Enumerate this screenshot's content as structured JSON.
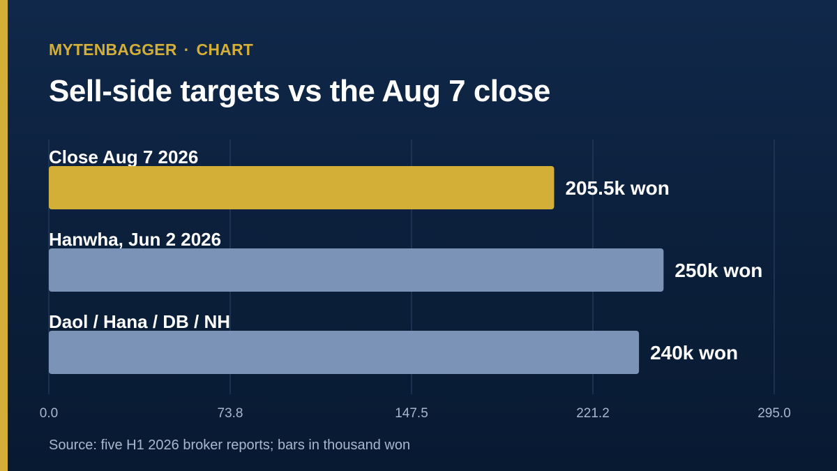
{
  "header": {
    "kicker_brand": "MYTENBAGGER",
    "kicker_separator": "·",
    "kicker_section": "CHART",
    "title": "Sell-side targets vs the Aug 7 close"
  },
  "footer": {
    "source": "Source: five H1 2026 broker reports; bars in thousand won"
  },
  "colors": {
    "accent": "#d4af37",
    "bar_default": "#7b93b7",
    "background": "#0b1f3a",
    "gridline": "#2c4566",
    "tick_label": "#a8b7cc"
  },
  "chart_data": {
    "type": "bar",
    "orientation": "horizontal",
    "title": "Sell-side targets vs the Aug 7 close",
    "xlabel": "",
    "ylabel": "",
    "xlim": [
      0,
      295
    ],
    "grid": true,
    "ticks": [
      "0.0",
      "73.8",
      "147.5",
      "221.2",
      "295.0"
    ],
    "tick_values": [
      0,
      73.75,
      147.5,
      221.25,
      295
    ],
    "bars": [
      {
        "category": "Close Aug 7 2026",
        "value": 205.5,
        "label": "205.5k won",
        "color": "#d4af37"
      },
      {
        "category": "Hanwha, Jun 2 2026",
        "value": 250,
        "label": "250k won",
        "color": "#7b93b7"
      },
      {
        "category": "Daol / Hana / DB / NH",
        "value": 240,
        "label": "240k won",
        "color": "#7b93b7"
      }
    ]
  }
}
